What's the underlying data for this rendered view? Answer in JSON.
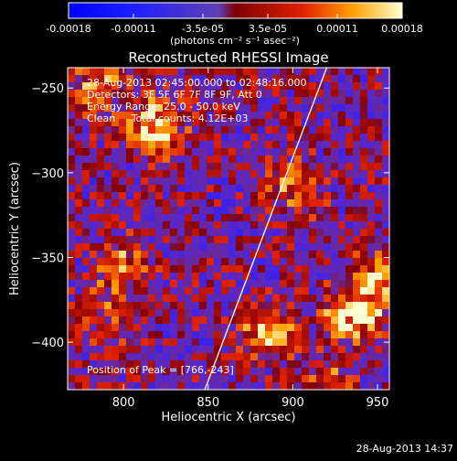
{
  "colorbar": {
    "tick_labels": [
      "-0.00018",
      "-0.00011",
      "-3.5e-05",
      "3.5e-05",
      "0.00011",
      "0.00018"
    ],
    "tick_values": [
      -0.00018,
      -0.00011,
      -3.5e-05,
      3.5e-05,
      0.00011,
      0.00018
    ],
    "range": [
      -0.00018,
      0.00018
    ],
    "unit_label": "(photons cm⁻² s⁻¹ asec⁻²)"
  },
  "chart_data": {
    "type": "heatmap",
    "title": "Reconstructed RHESSI Image",
    "xlabel": "Heliocentric X (arcsec)",
    "ylabel": "Heliocentric Y (arcsec)",
    "xlim": [
      767,
      957
    ],
    "ylim": [
      -428,
      -238
    ],
    "x_ticks": [
      800,
      850,
      900,
      950
    ],
    "y_ticks": [
      -250,
      -300,
      -350,
      -400
    ],
    "limb_line": [
      [
        848,
        -428
      ],
      [
        920,
        -238
      ]
    ],
    "hot_spots": [
      {
        "x": 820,
        "y": -272,
        "value": 0.00018
      },
      {
        "x": 785,
        "y": -250,
        "value": 0.00011
      },
      {
        "x": 800,
        "y": -355,
        "value": 0.0001
      },
      {
        "x": 900,
        "y": -310,
        "value": 0.00011
      },
      {
        "x": 935,
        "y": -385,
        "value": 0.00018
      },
      {
        "x": 885,
        "y": -395,
        "value": 0.00014
      },
      {
        "x": 790,
        "y": -385,
        "value": 8e-05
      },
      {
        "x": 950,
        "y": -365,
        "value": 0.00015
      },
      {
        "x": 920,
        "y": -425,
        "value": 9e-05
      }
    ]
  },
  "annotations": {
    "time_range": "28-Aug-2013 02:45:00.000 to 02:48:16.000",
    "detectors": "Detectors: 3F 5F 6F 7F 8F 9F, Att 0",
    "energy_range": "Energy Range: 25.0 - 50.0 keV",
    "clean_info": "Clean     Total counts: 4.12E+03",
    "peak_position": "Position of Peak = [766,-243]"
  },
  "footer": {
    "timestamp": "28-Aug-2013 14:37"
  }
}
